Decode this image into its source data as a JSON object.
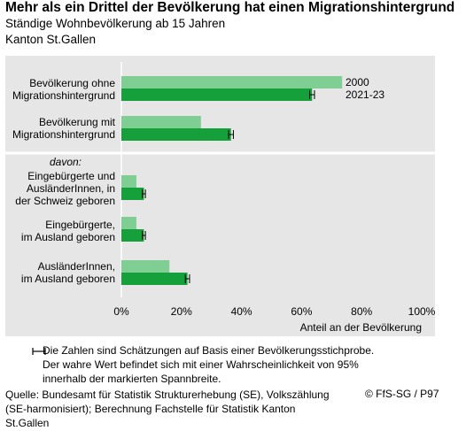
{
  "header": {
    "title": "Mehr als ein Drittel der Bevölkerung hat einen Migrationshintergrund",
    "subtitle": "Ständige Wohnbevölkerung ab 15 Jahren",
    "region": "Kanton St.Gallen"
  },
  "chart_data": {
    "type": "bar",
    "orientation": "horizontal",
    "categories": [
      [
        "Bevölkerung ohne",
        "Migrationshintergrund"
      ],
      [
        "Bevölkerung mit",
        "Migrationshintergrund"
      ],
      [
        "Eingebürgerte und",
        "AusländerInnen, in",
        "der Schweiz geboren"
      ],
      [
        "Eingebürgerte,",
        "im Ausland geboren"
      ],
      [
        "AusländerInnen,",
        "im Ausland geboren"
      ]
    ],
    "group_label": "davon:",
    "series": [
      {
        "name": "2000",
        "color": "#7fce93",
        "values": [
          73.5,
          26.5,
          5.0,
          5.0,
          16.0
        ]
      },
      {
        "name": "2021-23",
        "color": "#16a03c",
        "values": [
          63.5,
          36.5,
          7.5,
          7.5,
          22.0
        ],
        "error_margin": [
          0.8,
          0.8,
          0.5,
          0.5,
          0.7
        ]
      }
    ],
    "xlim": [
      0,
      100
    ],
    "xticks": [
      "0%",
      "20%",
      "40%",
      "60%",
      "80%",
      "100%"
    ],
    "xlabel": "Anteil an der Bevölkerung",
    "legend_placement": "right of first bar pair"
  },
  "footnote": {
    "lines": [
      "Die Zahlen sind Schätzungen auf Basis einer Bevölkerungsstichprobe.",
      "Der wahre Wert befindet sich mit einer Wahrscheinlichkeit von 95%",
      "innerhalb der markierten Spannbreite."
    ]
  },
  "source": {
    "lines": [
      "Quelle: Bundesamt für Statistik Strukturerhebung (SE), Volkszählung",
      "(SE-harmonisiert); Berechnung Fachstelle für Statistik Kanton",
      "St.Gallen"
    ],
    "copyright": "© FfS-SG / P97"
  }
}
